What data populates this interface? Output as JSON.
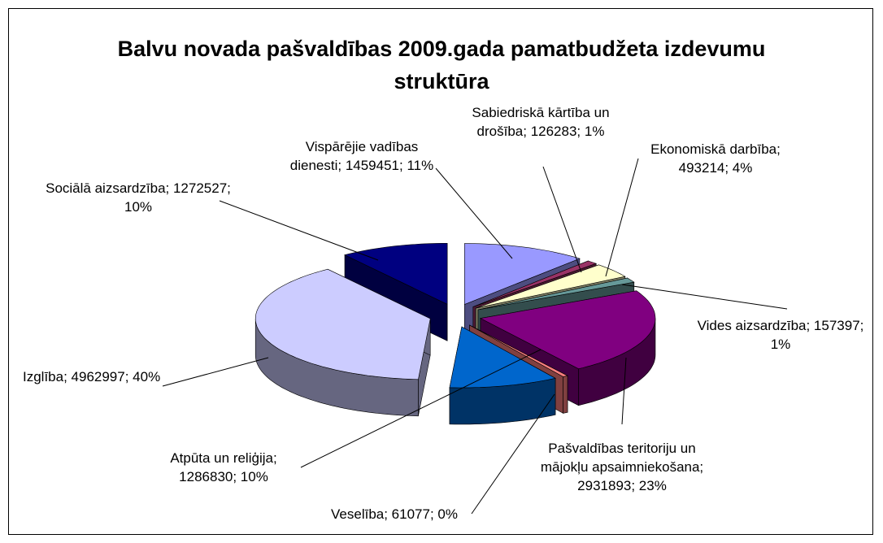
{
  "chart_data": {
    "type": "pie3d",
    "title": "Balvu novada pašvaldības 2009.gada pamatbudžeta izdevumu struktūra",
    "values": [
      1459451,
      126283,
      493214,
      157397,
      2931893,
      61077,
      1286830,
      4962997,
      1272527
    ],
    "value_labels": [
      "Vispārējie vadības dienesti; 1459451; 11%",
      "Sabiedriskā kārtība un drošība; 126283; 1%",
      "Ekonomiskā darbība; 493214; 4%",
      "Vides aizsardzība; 157397; 1%",
      "Pašvaldības teritoriju un mājokļu apsaimniekošana; 2931893; 23%",
      "Veselība; 61077; 0%",
      "Atpūta un reliģija; 1286830; 10%",
      "Izglība; 4962997; 40%",
      "Sociālā aizsardzība; 1272527; 10%"
    ],
    "colors": [
      "#9999ff",
      "#993366",
      "#ffffcc",
      "#669999",
      "#800080",
      "#ff8080",
      "#0066cc",
      "#ccccff",
      "#000080"
    ]
  }
}
